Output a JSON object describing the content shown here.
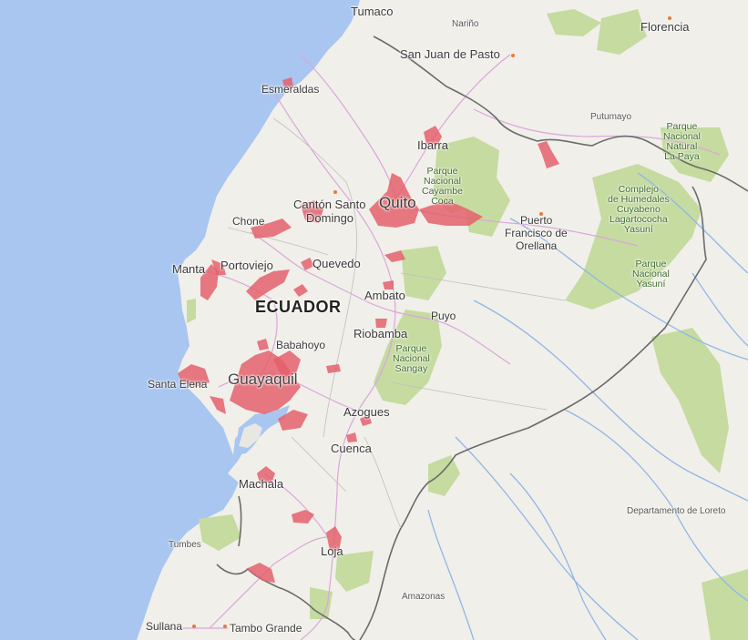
{
  "map": {
    "country_label": "ECUADOR",
    "cities": {
      "tumaco": "Tumaco",
      "narino": "Nariño",
      "florencia": "Florencia",
      "pasto": "San Juan de Pasto",
      "putumayo": "Putumayo",
      "esmeraldas": "Esmeraldas",
      "ibarra": "Ibarra",
      "santo_domingo_1": "Cantón Santo",
      "santo_domingo_2": "Domingo",
      "quito": "Quito",
      "coca": "Coca",
      "chone": "Chone",
      "puerto_fo_1": "Puerto",
      "puerto_fo_2": "Francisco de",
      "puerto_fo_3": "Orellana",
      "manta": "Manta",
      "portoviejo": "Portoviejo",
      "quevedo": "Quevedo",
      "ambato": "Ambato",
      "puyo": "Puyo",
      "babahoyo": "Babahoyo",
      "riobamba": "Riobamba",
      "santa_elena": "Santa Elena",
      "guayaquil": "Guayaquil",
      "azogues": "Azogues",
      "cuenca": "Cuenca",
      "machala": "Machala",
      "tumbes": "Tumbes",
      "loja": "Loja",
      "amazonas": "Amazonas",
      "loreto": "Departamento de Loreto",
      "sullana": "Sullana",
      "tambo_grande": "Tambo Grande"
    },
    "parks": {
      "la_paya": [
        "Parque",
        "Nacional",
        "Natural",
        "La Paya"
      ],
      "cayambe": [
        "Parque",
        "Nacional",
        "Cayambe",
        "Coca"
      ],
      "cuyabeno": [
        "Complejo",
        "de Humedales",
        "Cuyabeno",
        "Lagartococha",
        "Yasuní"
      ],
      "yasuni": [
        "Parque",
        "Nacional",
        "Yasuní"
      ],
      "sangay": [
        "Parque",
        "Nacional",
        "Sangay"
      ]
    },
    "colors": {
      "ocean": "#a9c6f0",
      "land": "#f1efe9",
      "park": "#c5dba0",
      "highlight": "#e4606c",
      "border": "#6b6b6b",
      "road": "#d9a6dc",
      "river": "#8fb6e8"
    }
  }
}
